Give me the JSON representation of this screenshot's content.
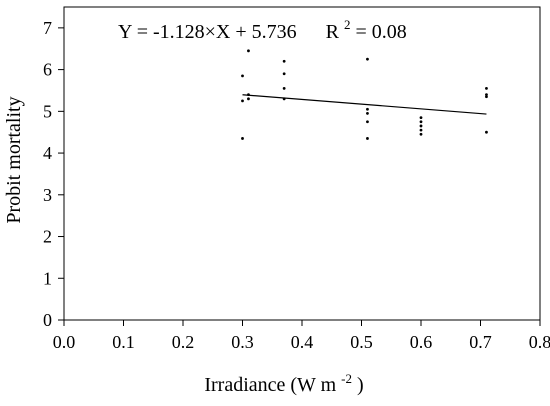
{
  "chart_data": {
    "type": "scatter",
    "title": "",
    "xlabel": "Irradiance (W m",
    "xlabel_sup": "-2",
    "xlabel_suffix": ")",
    "ylabel": "Probit mortality",
    "xlim": [
      0.0,
      0.8
    ],
    "ylim": [
      0,
      7.5
    ],
    "x_ticks": [
      "0.0",
      "0.1",
      "0.2",
      "0.3",
      "0.4",
      "0.5",
      "0.6",
      "0.7",
      "0.8"
    ],
    "y_ticks": [
      "0",
      "1",
      "2",
      "3",
      "4",
      "5",
      "6",
      "7"
    ],
    "grid": false,
    "legend": "none",
    "series": [
      {
        "points": [
          {
            "x": 0.3,
            "y": 5.85
          },
          {
            "x": 0.3,
            "y": 5.25
          },
          {
            "x": 0.3,
            "y": 4.35
          },
          {
            "x": 0.31,
            "y": 6.45
          },
          {
            "x": 0.31,
            "y": 5.4
          },
          {
            "x": 0.31,
            "y": 5.3
          },
          {
            "x": 0.37,
            "y": 6.2
          },
          {
            "x": 0.37,
            "y": 5.9
          },
          {
            "x": 0.37,
            "y": 5.55
          },
          {
            "x": 0.37,
            "y": 5.3
          },
          {
            "x": 0.51,
            "y": 6.25
          },
          {
            "x": 0.51,
            "y": 5.05
          },
          {
            "x": 0.51,
            "y": 4.95
          },
          {
            "x": 0.51,
            "y": 4.75
          },
          {
            "x": 0.51,
            "y": 4.35
          },
          {
            "x": 0.6,
            "y": 4.85
          },
          {
            "x": 0.6,
            "y": 4.75
          },
          {
            "x": 0.6,
            "y": 4.65
          },
          {
            "x": 0.6,
            "y": 4.55
          },
          {
            "x": 0.6,
            "y": 4.45
          },
          {
            "x": 0.71,
            "y": 5.55
          },
          {
            "x": 0.71,
            "y": 5.4
          },
          {
            "x": 0.71,
            "y": 5.35
          },
          {
            "x": 0.71,
            "y": 4.5
          }
        ]
      }
    ],
    "regression": {
      "slope": -1.128,
      "intercept": 5.736,
      "x_start": 0.3,
      "x_end": 0.71
    },
    "equation": {
      "text": "Y = -1.128×X + 5.736",
      "r_label": "R",
      "r_sup": "2",
      "r_value": " = 0.08"
    },
    "colors": {
      "points": "#000000",
      "line": "#000000",
      "axes": "#000000"
    }
  }
}
